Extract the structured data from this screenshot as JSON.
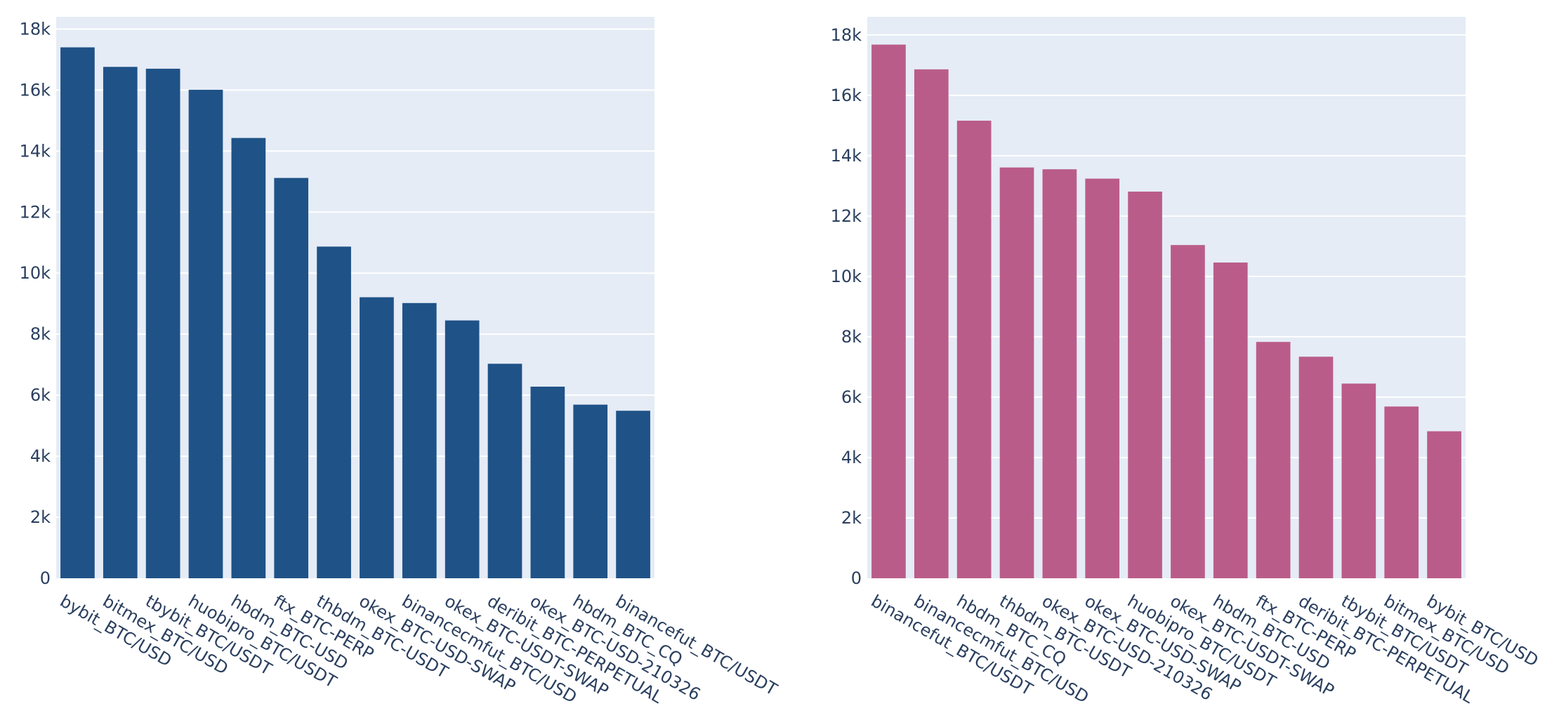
{
  "colors": {
    "background": "#ffffff",
    "plot_background": "#e5ecf6",
    "gridline": "#ffffff",
    "text": "#2a3f5f"
  },
  "chart_data": [
    {
      "type": "bar",
      "title": "",
      "xlabel": "",
      "ylabel": "",
      "ylim": [
        0,
        18400
      ],
      "yticks": [
        0,
        2000,
        4000,
        6000,
        8000,
        10000,
        12000,
        14000,
        16000,
        18000
      ],
      "ytick_labels": [
        "0",
        "2k",
        "4k",
        "6k",
        "8k",
        "10k",
        "12k",
        "14k",
        "16k",
        "18k"
      ],
      "color": "#1f5287",
      "grid": true,
      "categories": [
        "bybit_BTC/USD",
        "bitmex_BTC/USD",
        "tbybit_BTC/USDT",
        "huobipro_BTC/USDT",
        "hbdm_BTC-USD",
        "ftx_BTC-PERP",
        "thbdm_BTC-USDT",
        "okex_BTC-USD-SWAP",
        "binancecmfut_BTC/USD",
        "okex_BTC-USDT-SWAP",
        "deribit_BTC-PERPETUAL",
        "okex_BTC-USD-210326",
        "hbdm_BTC_CQ",
        "binancefut_BTC/USDT"
      ],
      "values": [
        17400,
        16760,
        16700,
        16010,
        14430,
        13120,
        10870,
        9210,
        9020,
        8450,
        7030,
        6280,
        5690,
        5490
      ]
    },
    {
      "type": "bar",
      "title": "",
      "xlabel": "",
      "ylabel": "",
      "ylim": [
        0,
        18600
      ],
      "yticks": [
        0,
        2000,
        4000,
        6000,
        8000,
        10000,
        12000,
        14000,
        16000,
        18000
      ],
      "ytick_labels": [
        "0",
        "2k",
        "4k",
        "6k",
        "8k",
        "10k",
        "12k",
        "14k",
        "16k",
        "18k"
      ],
      "color": "#ba5c89",
      "grid": true,
      "categories": [
        "binancefut_BTC/USDT",
        "binancecmfut_BTC/USD",
        "hbdm_BTC_CQ",
        "thbdm_BTC-USDT",
        "okex_BTC-USD-210326",
        "okex_BTC-USD-SWAP",
        "huobipro_BTC/USDT",
        "okex_BTC-USDT-SWAP",
        "hbdm_BTC-USD",
        "ftx_BTC-PERP",
        "deribit_BTC-PERPETUAL",
        "tbybit_BTC/USDT",
        "bitmex_BTC/USD",
        "bybit_BTC/USD"
      ],
      "values": [
        17680,
        16860,
        15160,
        13610,
        13550,
        13240,
        12810,
        11040,
        10460,
        7830,
        7340,
        6450,
        5690,
        4870
      ]
    }
  ]
}
